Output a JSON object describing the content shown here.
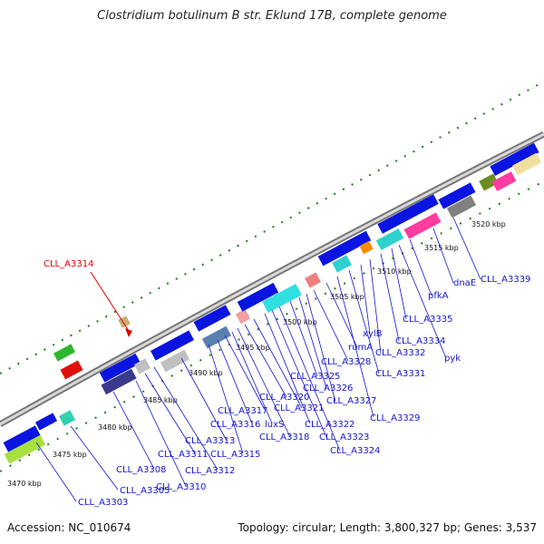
{
  "title": "Clostridium botulinum B str. Eklund 17B, complete genome",
  "footer": {
    "accession": "Accession: NC_010674",
    "summary": "Topology: circular; Length: 3,800,327 bp; Genes: 3,537"
  },
  "highlight": {
    "label": "CLL_A3314",
    "color": "#e00000"
  },
  "scale_labels": [
    "3470 kbp",
    "3475 kbp",
    "3480 kbp",
    "3485 kbp",
    "3490 kbp",
    "3495 kbp",
    "3500 kbp",
    "3505 kbp",
    "3510 kbp",
    "3515 kbp",
    "3520 kbp"
  ],
  "gene_labels": [
    "CLL_A3303",
    "CLL_A3305",
    "CLL_A3308",
    "CLL_A3310",
    "CLL_A3311",
    "CLL_A3312",
    "CLL_A3313",
    "CLL_A3315",
    "CLL_A3316",
    "CLL_A3317",
    "luxS",
    "CLL_A3318",
    "CLL_A3320",
    "CLL_A3321",
    "CLL_A3322",
    "CLL_A3323",
    "CLL_A3324",
    "CLL_A3325",
    "CLL_A3326",
    "CLL_A3327",
    "CLL_A3328",
    "rumA",
    "CLL_A3329",
    "CLL_A3331",
    "xylB",
    "CLL_A3332",
    "CLL_A3334",
    "CLL_A3335",
    "pyk",
    "pfkA",
    "dnaE",
    "CLL_A3339"
  ],
  "colors": {
    "gene_blue": "#0a14e0",
    "label_blue": "#1414cc",
    "backbone": "#8c8c8c",
    "tick_green": "#1f7a1f",
    "highlight_red": "#e00000"
  }
}
